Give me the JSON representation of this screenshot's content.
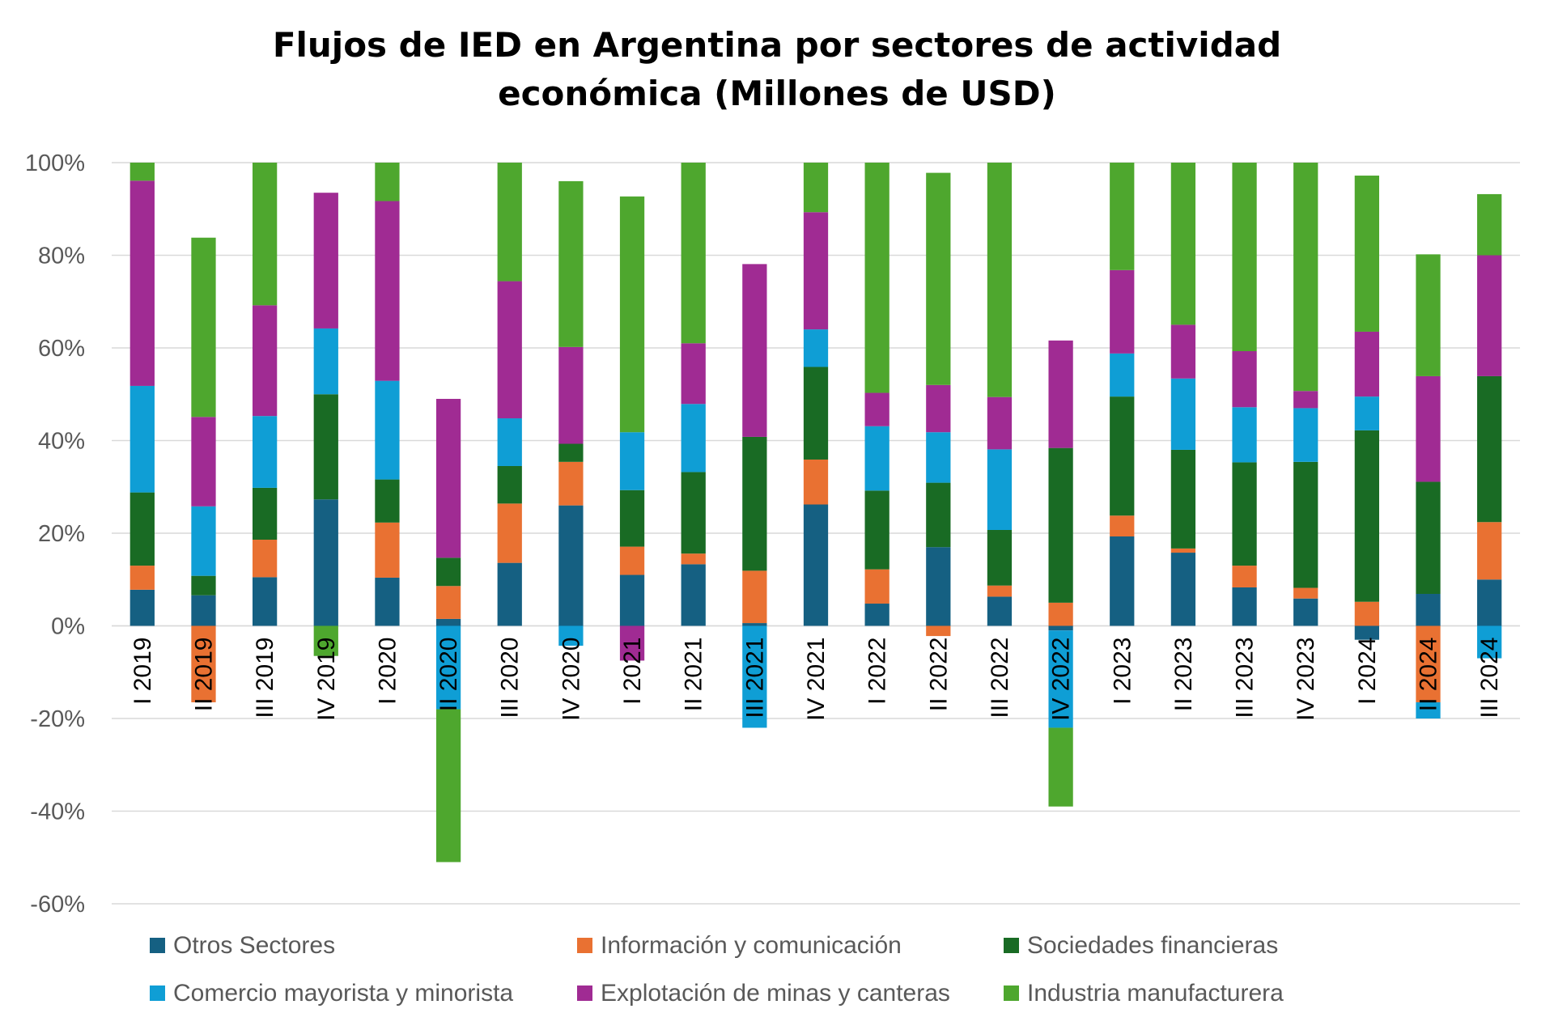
{
  "chart_data": {
    "type": "bar",
    "stacked": true,
    "title": "Flujos de IED en Argentina por sectores de actividad económica (Millones de USD)",
    "title_lines": [
      "Flujos de IED en Argentina por sectores de actividad",
      "económica (Millones de USD)"
    ],
    "xlabel": "",
    "ylabel": "",
    "ylim": [
      -60,
      100
    ],
    "y_ticks": [
      100,
      80,
      60,
      40,
      20,
      0,
      -20,
      -40,
      -60
    ],
    "y_tick_labels": [
      "100%",
      "80%",
      "60%",
      "40%",
      "20%",
      "0%",
      "-20%",
      "-40%",
      "-60%"
    ],
    "grid": true,
    "legend_position": "bottom",
    "categories": [
      "I 2019",
      "II 2019",
      "III 2019",
      "IV 2019",
      "I 2020",
      "II 2020",
      "III 2020",
      "IV 2020",
      "I 2021",
      "II 2021",
      "III 2021",
      "IV 2021",
      "I 2022",
      "II 2022",
      "III 2022",
      "IV 2022",
      "I 2023",
      "II 2023",
      "III 2023",
      "IV 2023",
      "I 2024",
      "II 2024",
      "III 2024"
    ],
    "series": [
      {
        "name": "Otros Sectores",
        "color": "#156082",
        "values": [
          7.8,
          6.6,
          10.5,
          27.3,
          10.4,
          1.5,
          13.6,
          26.0,
          11.0,
          13.3,
          0.6,
          26.2,
          4.8,
          17.0,
          6.3,
          -1.0,
          19.3,
          15.8,
          8.3,
          5.9,
          -3.0,
          6.9,
          10.0
        ]
      },
      {
        "name": "Información y comunicación",
        "color": "#E97132",
        "values": [
          5.2,
          -16.5,
          8.1,
          0.0,
          11.9,
          7.1,
          12.8,
          9.4,
          6.1,
          2.3,
          11.3,
          9.7,
          7.4,
          -2.2,
          2.4,
          5.0,
          4.5,
          0.9,
          4.7,
          2.3,
          5.2,
          -16.5,
          12.4
        ]
      },
      {
        "name": "Sociedades financieras",
        "color": "#196B24",
        "values": [
          15.8,
          4.2,
          11.2,
          22.7,
          9.3,
          6.1,
          8.1,
          3.9,
          12.2,
          17.6,
          28.9,
          20.0,
          17.0,
          13.9,
          12.0,
          33.4,
          25.7,
          21.3,
          22.3,
          27.2,
          37.0,
          24.2,
          31.5
        ]
      },
      {
        "name": "Comercio mayorista y minorista",
        "color": "#0F9ED5",
        "values": [
          23.0,
          15.0,
          15.5,
          14.2,
          21.3,
          -18.0,
          10.3,
          -4.3,
          12.5,
          14.7,
          -22.0,
          8.1,
          13.9,
          10.9,
          17.4,
          -21.0,
          9.3,
          15.4,
          11.9,
          11.6,
          7.3,
          -3.5,
          -7.0
        ]
      },
      {
        "name": "Explotación de minas y canteras",
        "color": "#A02B93",
        "values": [
          44.3,
          19.3,
          23.9,
          29.3,
          38.8,
          34.3,
          29.6,
          20.9,
          -7.5,
          13.1,
          37.3,
          25.3,
          7.2,
          10.2,
          11.3,
          23.2,
          18.0,
          11.6,
          12.1,
          3.7,
          14.0,
          22.8,
          26.1
        ]
      },
      {
        "name": "Industria manufacturera",
        "color": "#4EA72E",
        "values": [
          3.9,
          38.7,
          30.8,
          -6.5,
          8.3,
          -33.0,
          25.6,
          35.8,
          50.9,
          39.0,
          0.0,
          10.7,
          49.7,
          45.8,
          50.6,
          -17.0,
          23.2,
          35.0,
          40.7,
          49.3,
          33.7,
          26.3,
          13.2
        ]
      }
    ]
  }
}
